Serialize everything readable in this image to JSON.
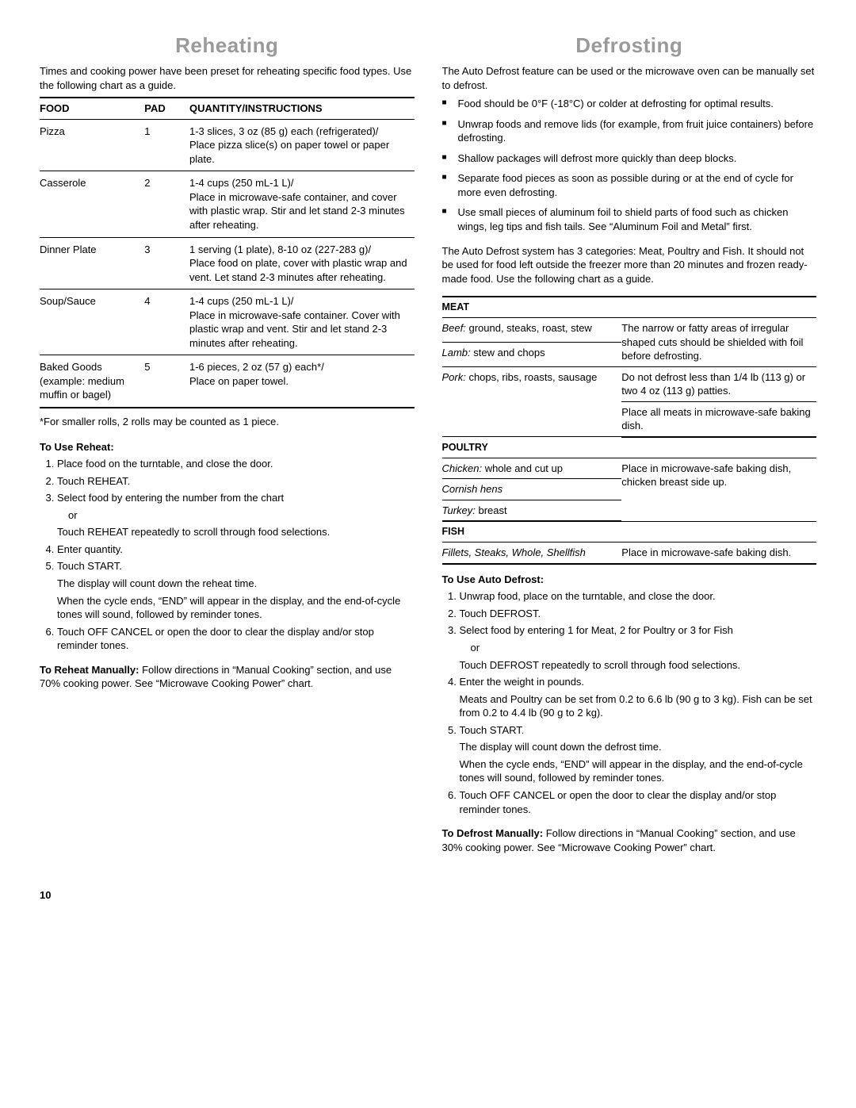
{
  "page_number": "10",
  "reheating": {
    "title": "Reheating",
    "intro": "Times and cooking power have been preset for reheating specific food types. Use the following chart as a guide.",
    "headers": {
      "food": "FOOD",
      "pad": "PAD",
      "inst": "QUANTITY/INSTRUCTIONS"
    },
    "rows": [
      {
        "food": "Pizza",
        "pad": "1",
        "inst": "1-3 slices, 3 oz (85 g) each (refrigerated)/\nPlace pizza slice(s) on paper towel or paper plate."
      },
      {
        "food": "Casserole",
        "pad": "2",
        "inst": "1-4 cups (250 mL-1 L)/\nPlace in microwave-safe container, and cover with plastic wrap. Stir and let stand 2-3 minutes after reheating."
      },
      {
        "food": "Dinner Plate",
        "pad": "3",
        "inst": "1 serving (1 plate), 8-10 oz (227-283 g)/\nPlace food on plate, cover with plastic wrap and vent. Let stand 2-3 minutes after reheating."
      },
      {
        "food": "Soup/Sauce",
        "pad": "4",
        "inst": "1-4 cups (250 mL-1 L)/\nPlace in microwave-safe container. Cover with plastic wrap and vent. Stir and let stand 2-3 minutes after reheating."
      },
      {
        "food": "Baked Goods (example: medium muffin or bagel)",
        "pad": "5",
        "inst": "1-6 pieces, 2 oz (57 g) each*/\nPlace on paper towel."
      }
    ],
    "footnote": "*For smaller rolls, 2 rolls may be counted as 1 piece.",
    "use_head": "To Use Reheat:",
    "steps": [
      {
        "t": "Place food on the turntable, and close the door."
      },
      {
        "t": "Touch REHEAT."
      },
      {
        "t": "Select food by entering the number from the chart",
        "sub_or": "or",
        "sub": "Touch REHEAT repeatedly to scroll through food selections."
      },
      {
        "t": "Enter quantity."
      },
      {
        "t": "Touch START.",
        "p1": "The display will count down the reheat time.",
        "p2": "When the cycle ends, “END” will appear in the display, and the end-of-cycle tones will sound, followed by reminder tones."
      },
      {
        "t": "Touch OFF CANCEL or open the door to clear the display and/or stop reminder tones."
      }
    ],
    "manual_bold": "To Reheat Manually:",
    "manual_rest": " Follow directions in “Manual Cooking” section, and use 70% cooking power. See “Microwave Cooking Power” chart."
  },
  "defrosting": {
    "title": "Defrosting",
    "intro": "The Auto Defrost feature can be used or the microwave oven can be manually set to defrost.",
    "bullets": [
      "Food should be 0°F (-18°C) or colder at defrosting for optimal results.",
      "Unwrap foods and remove lids (for example, from fruit juice containers) before defrosting.",
      "Shallow packages will defrost more quickly than deep blocks.",
      "Separate food pieces as soon as possible during or at the end of cycle for more even defrosting.",
      "Use small pieces of aluminum foil to shield parts of food such as chicken wings, leg tips and fish tails. See “Aluminum Foil and Metal” first."
    ],
    "mid": "The Auto Defrost system has 3 categories: Meat, Poultry and Fish. It should not be used for food left outside the freezer more than 20 minutes and frozen ready-made food. Use the following chart as a guide.",
    "meat_head": "MEAT",
    "meat_rows": [
      {
        "l_em": "Beef:",
        "l_rest": " ground, steaks, roast, stew"
      },
      {
        "l_em": "Lamb:",
        "l_rest": " stew and chops"
      },
      {
        "l_em": "Pork:",
        "l_rest": " chops, ribs, roasts, sausage"
      }
    ],
    "meat_r1": "The narrow or fatty areas of irregular shaped cuts should be shielded with foil before defrosting.",
    "meat_r2": "Do not defrost less than 1/4 lb (113 g) or two 4 oz (113 g) patties.",
    "meat_r3": "Place all meats in microwave-safe baking dish.",
    "poultry_head": "POULTRY",
    "poultry_rows": [
      {
        "l_em": "Chicken:",
        "l_rest": " whole and cut up"
      },
      {
        "l_em": "Cornish hens",
        "l_rest": ""
      },
      {
        "l_em": "Turkey:",
        "l_rest": " breast"
      }
    ],
    "poultry_r": "Place in microwave-safe baking dish, chicken breast side up.",
    "fish_head": "FISH",
    "fish_l": "Fillets, Steaks, Whole, Shellfish",
    "fish_r": "Place in microwave-safe baking dish.",
    "use_head": "To Use Auto Defrost:",
    "steps": [
      {
        "t": "Unwrap food, place on the turntable, and close the door."
      },
      {
        "t": "Touch DEFROST."
      },
      {
        "t": "Select food by entering 1 for Meat, 2 for Poultry or 3 for Fish",
        "sub_or": "or",
        "sub": "Touch DEFROST repeatedly to scroll through food selections."
      },
      {
        "t": "Enter the weight in pounds.",
        "p1": "Meats and Poultry can be set from 0.2 to 6.6 lb (90 g to 3 kg). Fish can be set from 0.2 to 4.4 lb (90 g to 2 kg)."
      },
      {
        "t": "Touch START.",
        "p1": "The display will count down the defrost time.",
        "p2": "When the cycle ends, “END” will appear in the display, and the end-of-cycle tones will sound, followed by reminder tones."
      },
      {
        "t": "Touch OFF CANCEL or open the door to clear the display and/or stop reminder tones."
      }
    ],
    "manual_bold": "To Defrost Manually:",
    "manual_rest": " Follow directions in “Manual Cooking” section, and use 30% cooking power. See “Microwave Cooking Power” chart."
  }
}
